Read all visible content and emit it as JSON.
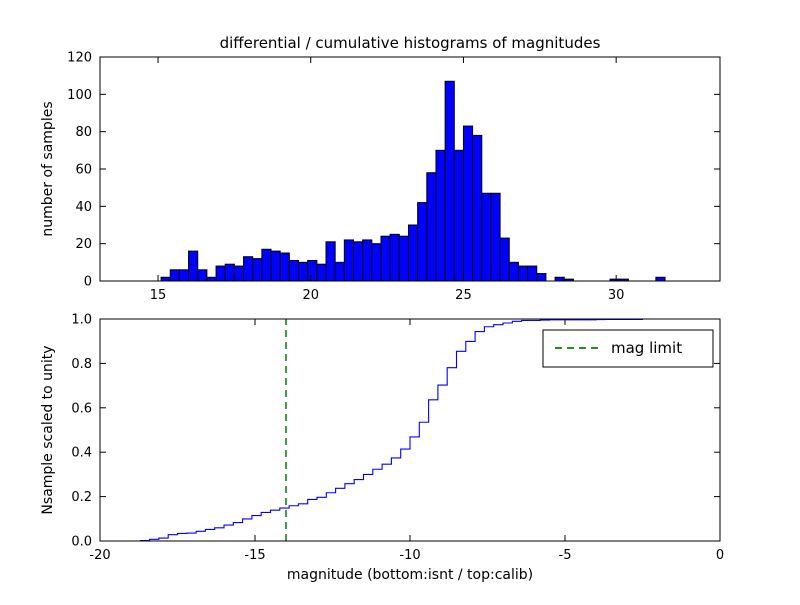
{
  "figure": {
    "background_color": "#ffffff"
  },
  "chart_data": [
    {
      "type": "bar",
      "subtype": "differential-histogram",
      "title": "differential / cumulative histograms of magnitudes",
      "xlabel": "",
      "ylabel": "number of samples",
      "xlim": [
        13.1,
        33.4
      ],
      "ylim": [
        0,
        120
      ],
      "xticks": {
        "values": [
          15,
          20,
          25,
          30
        ],
        "labels": [
          "15",
          "20",
          "25",
          "30"
        ]
      },
      "yticks": {
        "values": [
          0,
          20,
          40,
          60,
          80,
          100,
          120
        ],
        "labels": [
          "0",
          "20",
          "40",
          "60",
          "80",
          "100",
          "120"
        ]
      },
      "grid": false,
      "bar_color": "#0000ff",
      "bar_edge_color": "#000000",
      "bins": {
        "start": 15.1,
        "width": 0.3,
        "heights": [
          2,
          6,
          6,
          16,
          6,
          2,
          8,
          9,
          8,
          13,
          12,
          17,
          16,
          15,
          11,
          10,
          11,
          9,
          21,
          10,
          22,
          21,
          22,
          20,
          24,
          25,
          24,
          30,
          42,
          58,
          70,
          107,
          70,
          83,
          78,
          47,
          47,
          23,
          10,
          8,
          8,
          4,
          0,
          2,
          1,
          0,
          0,
          0,
          0,
          1,
          1,
          0,
          0,
          0,
          2
        ]
      }
    },
    {
      "type": "line",
      "subtype": "cumulative-step-histogram",
      "title": "",
      "xlabel": "magnitude (bottom:isnt / top:calib)",
      "ylabel": "Nsample scaled to unity",
      "xlim": [
        -20,
        0
      ],
      "ylim": [
        0,
        1.0
      ],
      "xticks": {
        "values": [
          -20,
          -15,
          -10,
          -5,
          0
        ],
        "labels": [
          "-20",
          "-15",
          "-10",
          "-5",
          "0"
        ]
      },
      "yticks": {
        "values": [
          0.0,
          0.2,
          0.4,
          0.6,
          0.8,
          1.0
        ],
        "labels": [
          "0.0",
          "0.2",
          "0.4",
          "0.6",
          "0.8",
          "1.0"
        ]
      },
      "grid": false,
      "line_color": "#0000ff",
      "derived_from": "cumulative sum of top histogram bins, normalized to unity",
      "x_shift_from_top": -33.8,
      "mag_limit_line": {
        "x": -14,
        "color": "#008000",
        "style": "dashed",
        "label": "mag limit"
      },
      "legend": {
        "label": "mag limit",
        "position": "upper right",
        "line_color": "#008000",
        "line_style": "dashed"
      }
    }
  ]
}
